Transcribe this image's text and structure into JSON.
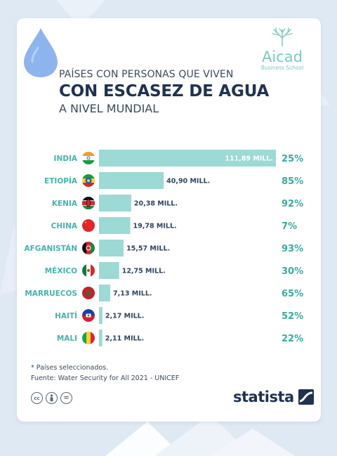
{
  "header": {
    "line1": "PAÍSES CON PERSONAS QUE VIVEN",
    "line2": "CON ESCASEZ DE AGUA",
    "line3": "A NIVEL MUNDIAL"
  },
  "logo": {
    "name": "Aicad",
    "subtitle": "Business School"
  },
  "colors": {
    "bar": "#9dd9d5",
    "country": "#45b3ad",
    "percent": "#3aa9a3",
    "value_dark": "#2f4360",
    "value_light": "#ffffff",
    "drop": "#8eb4ee"
  },
  "chart_data": {
    "type": "bar",
    "orientation": "horizontal",
    "categories": [
      "INDIA",
      "ETIOPÍA",
      "KENIA",
      "CHINA",
      "AFGANISTÁN",
      "MÉXICO",
      "MARRUECOS",
      "HAITÍ",
      "MALI"
    ],
    "values": [
      111.89,
      40.9,
      20.38,
      19.78,
      15.57,
      12.75,
      7.13,
      2.17,
      2.11
    ],
    "value_labels": [
      "111,89 MILL.",
      "40,90 MILL.",
      "20,38 MILL.",
      "19,78 MILL.",
      "15,57 MILL.",
      "12,75 MILL.",
      "7,13 MILL.",
      "2,17 MILL.",
      "2,11 MILL."
    ],
    "percentages": [
      "25%",
      "85%",
      "92%",
      "7%",
      "93%",
      "30%",
      "65%",
      "52%",
      "22%"
    ],
    "flags": [
      "india-flag",
      "ethiopia-flag",
      "kenya-flag",
      "china-flag",
      "afghanistan-flag",
      "mexico-flag",
      "morocco-flag",
      "haiti-flag",
      "mali-flag"
    ],
    "xlim": [
      0,
      111.89
    ],
    "grid": false,
    "legend": "none"
  },
  "footer": {
    "note": "* Países seleccionados.",
    "source": "Fuente: Water Security for All 2021 - UNICEF",
    "cc_icons": [
      "cc-icon",
      "attribution-icon",
      "no-derivatives-icon"
    ],
    "cc_glyphs": [
      "cc",
      "",
      "="
    ],
    "brand": "statista"
  }
}
